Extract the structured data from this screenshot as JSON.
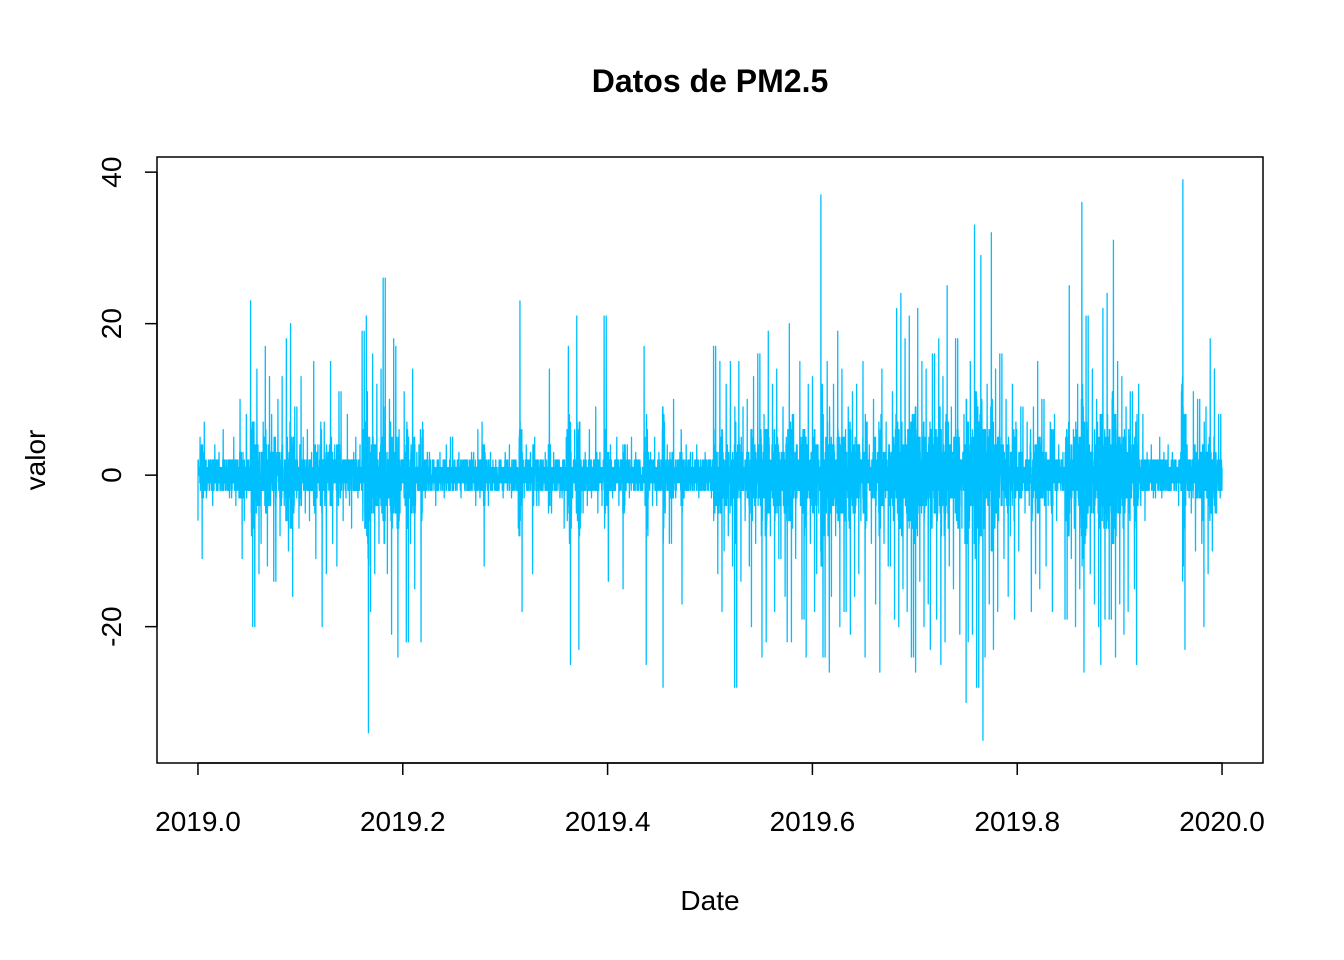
{
  "chart_data": {
    "type": "line",
    "title": "Datos de PM2.5",
    "xlabel": "Date",
    "ylabel": "valor",
    "xlim": [
      2018.96,
      2020.04
    ],
    "ylim": [
      -38,
      42
    ],
    "x_ticks": [
      2019.0,
      2019.2,
      2019.4,
      2019.6,
      2019.8,
      2020.0
    ],
    "x_tick_labels": [
      "2019.0",
      "2019.2",
      "2019.4",
      "2019.6",
      "2019.8",
      "2020.0"
    ],
    "y_ticks": [
      -20,
      0,
      20,
      40
    ],
    "y_tick_labels": [
      "-20",
      "0",
      "20",
      "40"
    ],
    "grid": false,
    "series": [
      {
        "color": "#00BFFF",
        "x_start": 2019.0,
        "x_end": 2020.0,
        "sampling": "hourly",
        "values": [
          -6,
          5,
          -11,
          7,
          -3,
          2,
          -4,
          4,
          -2,
          3,
          -1,
          6,
          -2,
          1,
          -3,
          5,
          -4,
          2,
          10,
          -11,
          -6,
          8,
          -2,
          23,
          -20,
          14,
          -13,
          -9,
          7,
          17,
          -12,
          13,
          8,
          -14,
          10,
          -8,
          13,
          -4,
          18,
          -10,
          20,
          -16,
          9,
          -7,
          13,
          5,
          -5,
          6,
          -6,
          3,
          15,
          -11,
          4,
          -20,
          7,
          -13,
          3,
          15,
          -9,
          4,
          -12,
          11,
          -6,
          2,
          8,
          -4,
          -7,
          3,
          5,
          -3,
          4,
          19,
          21,
          -34,
          -18,
          16,
          -13,
          12,
          -9,
          14,
          26,
          -13,
          10,
          -21,
          18,
          17,
          -24,
          -5,
          2,
          11,
          -22,
          -9,
          14,
          -15,
          3,
          4,
          -22,
          6,
          -3,
          3,
          -1,
          2,
          -4,
          -2,
          3,
          1,
          -3,
          4,
          -1,
          5,
          2,
          -2,
          3,
          -3,
          1,
          -2,
          2,
          -1,
          3,
          -4,
          6,
          -3,
          7,
          -12,
          2,
          -4,
          3,
          -2,
          1,
          -1,
          2,
          -3,
          3,
          -2,
          4,
          -3,
          2,
          -1,
          23,
          -18,
          -3,
          4,
          -2,
          3,
          -13,
          5,
          -4,
          2,
          -1,
          3,
          -2,
          14,
          -5,
          3,
          -2,
          2,
          -3,
          -7,
          5,
          17,
          -25,
          -3,
          6,
          21,
          -23,
          -5,
          3,
          -4,
          6,
          -3,
          2,
          9,
          -5,
          3,
          -4,
          21,
          -14,
          4,
          -3,
          -2,
          5,
          -4,
          2,
          -15,
          4,
          -3,
          5,
          -2,
          3,
          -2,
          2,
          -1,
          17,
          -25,
          3,
          -4,
          5,
          -4,
          3,
          2,
          -28,
          -5,
          4,
          -9,
          10,
          -3,
          2,
          3,
          -17,
          -3,
          4,
          -2,
          3,
          -2,
          4,
          -3,
          2,
          -2,
          3,
          -1,
          2,
          -3,
          17,
          -13,
          15,
          -18,
          -10,
          12,
          -8,
          15,
          -12,
          -28,
          15,
          -14,
          9,
          -6,
          10,
          -12,
          -20,
          13,
          -9,
          16,
          -24,
          8,
          -22,
          19,
          -8,
          12,
          -18,
          14,
          -11,
          9,
          -16,
          -22,
          20,
          -22,
          8,
          -11,
          -2,
          15,
          -19,
          -24,
          12,
          -9,
          13,
          -18,
          -13,
          -5,
          37,
          -24,
          15,
          -26,
          -16,
          12,
          -8,
          19,
          -20,
          14,
          -18,
          9,
          -21,
          11,
          -16,
          12,
          -13,
          -6,
          15,
          -24,
          4,
          -9,
          10,
          -17,
          3,
          -26,
          14,
          -9,
          7,
          -12,
          11,
          -19,
          22,
          -20,
          24,
          -15,
          18,
          -18,
          21,
          -24,
          -26,
          22,
          -14,
          15,
          -20,
          14,
          -17,
          -23,
          16,
          -19,
          18,
          -25,
          13,
          -22,
          25,
          -12,
          9,
          -15,
          18,
          -21,
          -7,
          8,
          -30,
          -22,
          15,
          -21,
          33,
          -28,
          29,
          -35,
          -24,
          12,
          -17,
          32,
          -23,
          14,
          -18,
          16,
          -11,
          10,
          -16,
          -8,
          12,
          -19,
          6,
          -10,
          9,
          -5,
          7,
          -4,
          -18,
          9,
          -13,
          15,
          -15,
          10,
          -12,
          -4,
          7,
          -18,
          8,
          -6,
          4,
          -2,
          3,
          -19,
          25,
          -11,
          6,
          -20,
          12,
          -15,
          36,
          -26,
          21,
          -13,
          14,
          -17,
          10,
          -20,
          -25,
          22,
          -19,
          24,
          -19,
          31,
          -24,
          15,
          -17,
          13,
          -21,
          9,
          -18,
          11,
          -15,
          -25,
          12,
          -4,
          8,
          -6,
          3,
          -2,
          4,
          -3,
          2,
          5,
          -3,
          3,
          -2,
          4,
          -1,
          3,
          -2,
          -4,
          3,
          39,
          -23,
          4,
          -3,
          -5,
          11,
          -10,
          10,
          -9,
          -20,
          9,
          -13,
          18,
          -10,
          14,
          -5,
          8,
          -3
        ]
      }
    ]
  }
}
